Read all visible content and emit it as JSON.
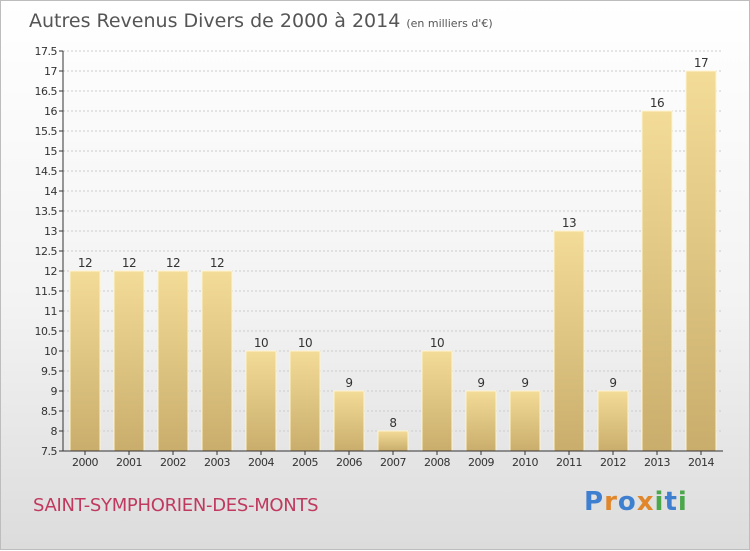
{
  "title": "Autres Revenus Divers de 2000 à 2014",
  "unit": "(en milliers d'€)",
  "commune": "SAINT-SYMPHORIEN-DES-MONTS",
  "logo": {
    "text": "Proxiti",
    "letters": [
      "P",
      "r",
      "o",
      "x",
      "i",
      "t",
      "i"
    ],
    "colors": [
      "#3f7fd0",
      "#e0872b",
      "#3f7fd0",
      "#e0872b",
      "#4aa84a",
      "#3f7fd0",
      "#4aa84a"
    ]
  },
  "colors": {
    "bar_light": "#f3dc97",
    "bar_dark": "#c9ad6c",
    "grid": "#cccccc",
    "axis": "#333333",
    "text": "#333333",
    "accent": "#c0395f"
  },
  "chart_data": {
    "type": "bar",
    "title": "Autres Revenus Divers de 2000 à 2014",
    "ylim": [
      7.5,
      17.5
    ],
    "yticks": [
      "7.5",
      "8",
      "8.5",
      "9",
      "9.5",
      "10",
      "10.5",
      "11",
      "11.5",
      "12",
      "12.5",
      "13",
      "13.5",
      "14",
      "14.5",
      "15",
      "15.5",
      "16",
      "16.5",
      "17",
      "17.5"
    ],
    "grid": true,
    "categories": [
      "2000",
      "2001",
      "2002",
      "2003",
      "2004",
      "2005",
      "2006",
      "2007",
      "2008",
      "2009",
      "2010",
      "2011",
      "2012",
      "2013",
      "2014"
    ],
    "values": [
      12,
      12,
      12,
      12,
      10,
      10,
      9,
      8,
      10,
      9,
      9,
      13,
      9,
      16,
      17
    ]
  }
}
